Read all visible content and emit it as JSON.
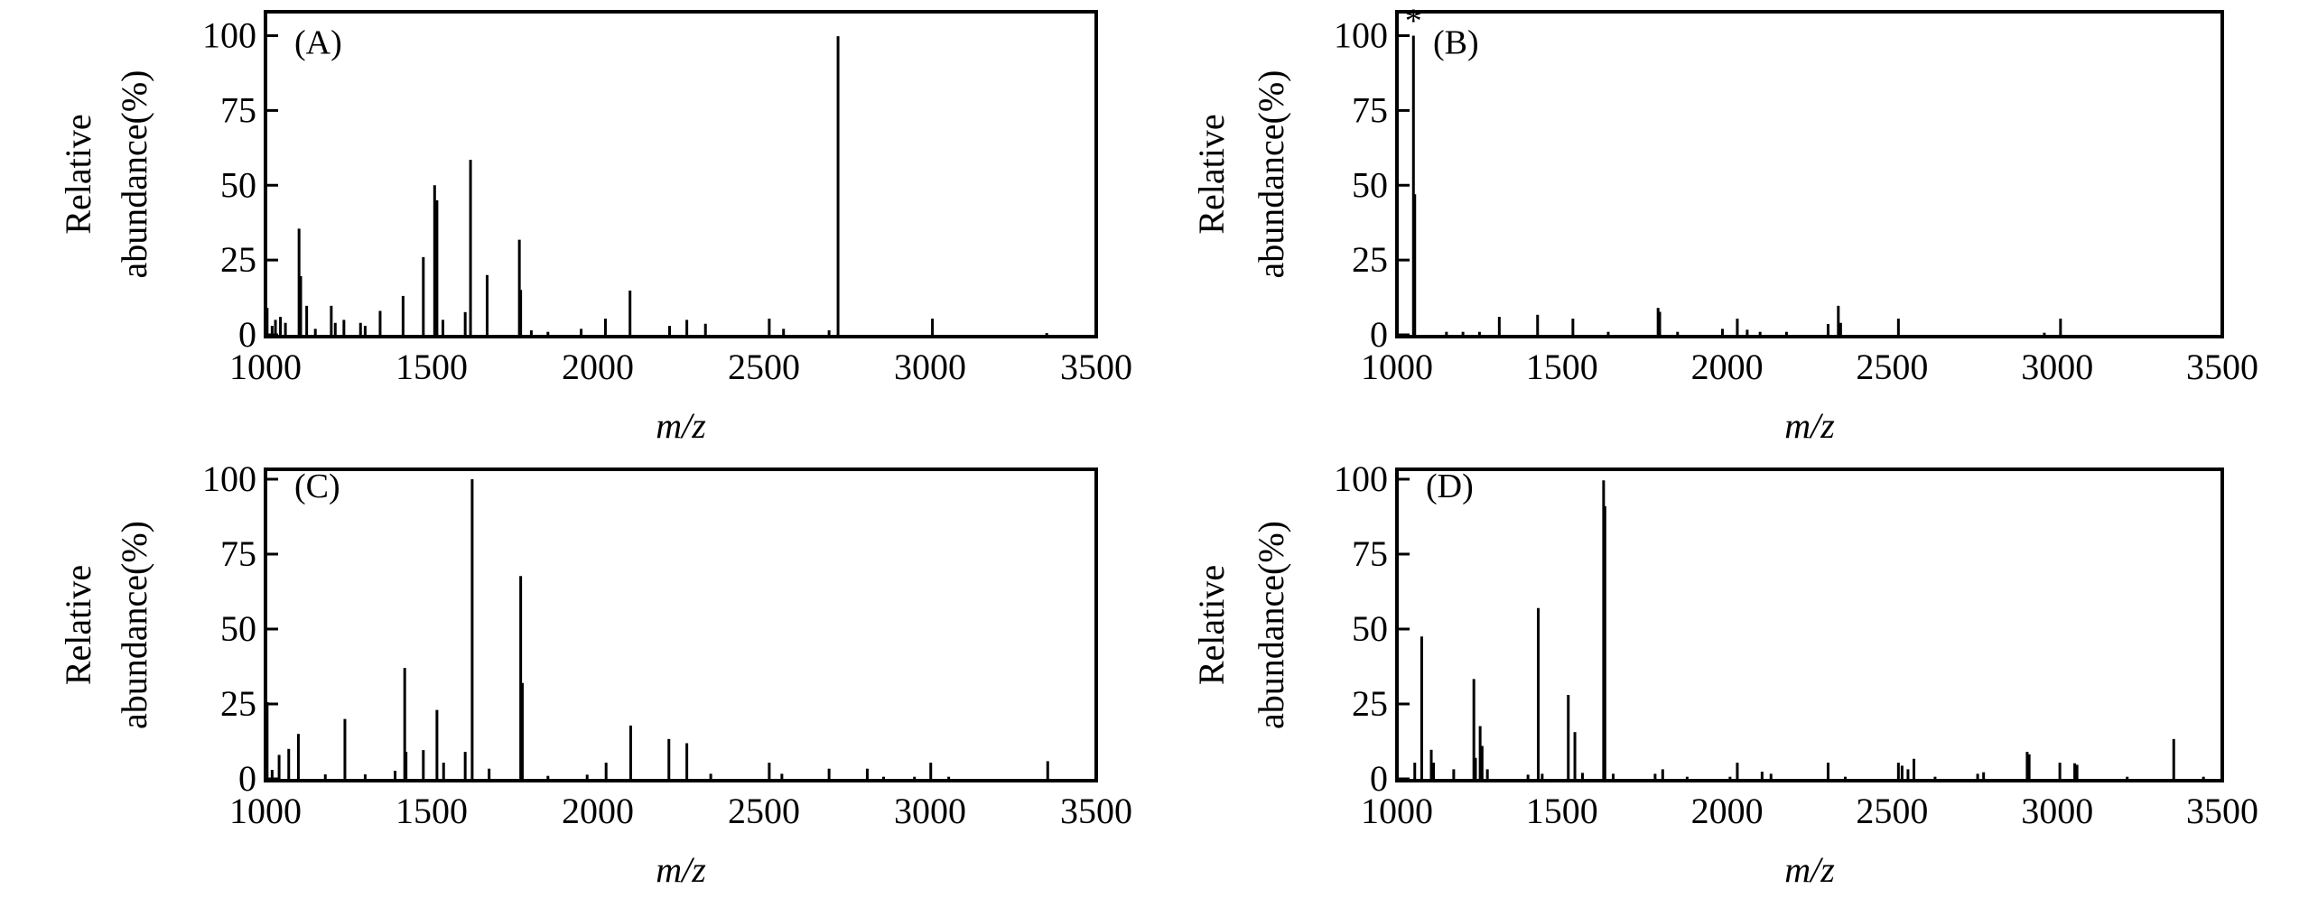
{
  "chart_data": [
    {
      "type": "bar",
      "panel_label": "(A)",
      "xlabel": "m/z",
      "ylabel": [
        "Relative",
        "abundance(%)"
      ],
      "xlim": [
        1000,
        3500
      ],
      "ylim": [
        0,
        108
      ],
      "xticks": [
        1000,
        1500,
        2000,
        2500,
        3000,
        3500
      ],
      "yticks": [
        0,
        25,
        50,
        75,
        100
      ],
      "peaks": [
        [
          1005,
          9
        ],
        [
          1020,
          3
        ],
        [
          1030,
          5
        ],
        [
          1045,
          6
        ],
        [
          1060,
          4
        ],
        [
          1101,
          35.5
        ],
        [
          1106,
          19.6
        ],
        [
          1124,
          9.7
        ],
        [
          1150,
          2
        ],
        [
          1198,
          9.7
        ],
        [
          1210,
          4
        ],
        [
          1236,
          5
        ],
        [
          1286,
          4
        ],
        [
          1300,
          3
        ],
        [
          1345,
          8
        ],
        [
          1414,
          13
        ],
        [
          1475,
          26
        ],
        [
          1509,
          50
        ],
        [
          1516,
          45
        ],
        [
          1534,
          5
        ],
        [
          1601,
          7.6
        ],
        [
          1617,
          58.5
        ],
        [
          1667,
          20
        ],
        [
          1764,
          31.8
        ],
        [
          1768,
          15
        ],
        [
          1800,
          1.5
        ],
        [
          1850,
          1
        ],
        [
          1950,
          2
        ],
        [
          2023,
          5.4
        ],
        [
          2097,
          14.8
        ],
        [
          2216,
          3
        ],
        [
          2268,
          5
        ],
        [
          2324,
          3.7
        ],
        [
          2516,
          5.4
        ],
        [
          2559,
          2
        ],
        [
          2696,
          1.5
        ],
        [
          2723,
          99.8
        ],
        [
          3007,
          5.4
        ],
        [
          3351,
          0.6
        ]
      ]
    },
    {
      "type": "bar",
      "panel_label": "(B)",
      "annotation": "*",
      "xlabel": "m/z",
      "ylabel": [
        "Relative",
        "abundance(%)"
      ],
      "xlim": [
        1000,
        3500
      ],
      "ylim": [
        0,
        108
      ],
      "xticks": [
        1000,
        1500,
        2000,
        2500,
        3000,
        3500
      ],
      "yticks": [
        0,
        25,
        50,
        75,
        100
      ],
      "peaks": [
        [
          1050,
          100
        ],
        [
          1054,
          47
        ],
        [
          1150,
          1
        ],
        [
          1200,
          1
        ],
        [
          1250,
          1
        ],
        [
          1310,
          6
        ],
        [
          1426,
          6.7
        ],
        [
          1533,
          5.4
        ],
        [
          1640,
          1
        ],
        [
          1791,
          9
        ],
        [
          1796,
          7.7
        ],
        [
          1850,
          1
        ],
        [
          1986,
          2
        ],
        [
          2031,
          5.4
        ],
        [
          2061,
          1.7
        ],
        [
          2100,
          1
        ],
        [
          2180,
          1
        ],
        [
          2306,
          3.6
        ],
        [
          2337,
          9.7
        ],
        [
          2344,
          4
        ],
        [
          2519,
          5.4
        ],
        [
          2961,
          0.7
        ],
        [
          3010,
          5.4
        ]
      ]
    },
    {
      "type": "bar",
      "panel_label": "(C)",
      "xlabel": "m/z",
      "ylabel": [
        "Relative",
        "abundance(%)"
      ],
      "xlim": [
        1000,
        3500
      ],
      "ylim": [
        0,
        103.3
      ],
      "xticks": [
        1000,
        1500,
        2000,
        2500,
        3000,
        3500
      ],
      "yticks": [
        0,
        25,
        50,
        75,
        100
      ],
      "peaks": [
        [
          1005,
          25.6
        ],
        [
          1020,
          3
        ],
        [
          1041,
          8
        ],
        [
          1070,
          10
        ],
        [
          1099,
          15
        ],
        [
          1180,
          1.5
        ],
        [
          1239,
          20
        ],
        [
          1300,
          1.5
        ],
        [
          1390,
          2.7
        ],
        [
          1419,
          37
        ],
        [
          1423,
          9
        ],
        [
          1475,
          9.6
        ],
        [
          1516,
          23
        ],
        [
          1536,
          5.4
        ],
        [
          1601,
          9
        ],
        [
          1622,
          100
        ],
        [
          1673,
          3.4
        ],
        [
          1768,
          67.7
        ],
        [
          1773,
          32
        ],
        [
          1850,
          1
        ],
        [
          1968,
          1.4
        ],
        [
          2025,
          5.4
        ],
        [
          2099,
          17.8
        ],
        [
          2214,
          13.3
        ],
        [
          2268,
          11.9
        ],
        [
          2340,
          1.7
        ],
        [
          2516,
          5.4
        ],
        [
          2554,
          1.7
        ],
        [
          2696,
          3.4
        ],
        [
          2811,
          3.4
        ],
        [
          2860,
          0.7
        ],
        [
          2953,
          0.7
        ],
        [
          3002,
          5.4
        ],
        [
          3056,
          0.7
        ],
        [
          3354,
          5.9
        ]
      ]
    },
    {
      "type": "bar",
      "panel_label": "(D)",
      "xlabel": "m/z",
      "ylabel": [
        "Relative",
        "abundance(%)"
      ],
      "xlim": [
        1000,
        3500
      ],
      "ylim": [
        0,
        103.3
      ],
      "xticks": [
        1000,
        1500,
        2000,
        2500,
        3000,
        3500
      ],
      "yticks": [
        0,
        25,
        50,
        75,
        100
      ],
      "peaks": [
        [
          1054,
          5.4
        ],
        [
          1075,
          47.5
        ],
        [
          1104,
          9.7
        ],
        [
          1111,
          5.4
        ],
        [
          1172,
          3.2
        ],
        [
          1233,
          33.3
        ],
        [
          1238,
          7
        ],
        [
          1252,
          17.6
        ],
        [
          1258,
          11
        ],
        [
          1274,
          3.2
        ],
        [
          1397,
          1.4
        ],
        [
          1428,
          57
        ],
        [
          1440,
          1.7
        ],
        [
          1519,
          28
        ],
        [
          1539,
          15.6
        ],
        [
          1562,
          2
        ],
        [
          1626,
          99.6
        ],
        [
          1630,
          91
        ],
        [
          1655,
          1.7
        ],
        [
          1782,
          1.7
        ],
        [
          1805,
          3.2
        ],
        [
          1879,
          0.7
        ],
        [
          2009,
          0.7
        ],
        [
          2031,
          5.4
        ],
        [
          2106,
          2.4
        ],
        [
          2133,
          1.7
        ],
        [
          2306,
          5.4
        ],
        [
          2358,
          0.7
        ],
        [
          2519,
          5.4
        ],
        [
          2530,
          4.4
        ],
        [
          2548,
          3.2
        ],
        [
          2566,
          6.7
        ],
        [
          2630,
          0.7
        ],
        [
          2759,
          1.7
        ],
        [
          2777,
          2.2
        ],
        [
          2909,
          9
        ],
        [
          2915,
          8.2
        ],
        [
          3008,
          5.4
        ],
        [
          3053,
          5.2
        ],
        [
          3060,
          4.7
        ],
        [
          3212,
          0.7
        ],
        [
          3353,
          13.3
        ],
        [
          3443,
          0.7
        ]
      ]
    }
  ]
}
